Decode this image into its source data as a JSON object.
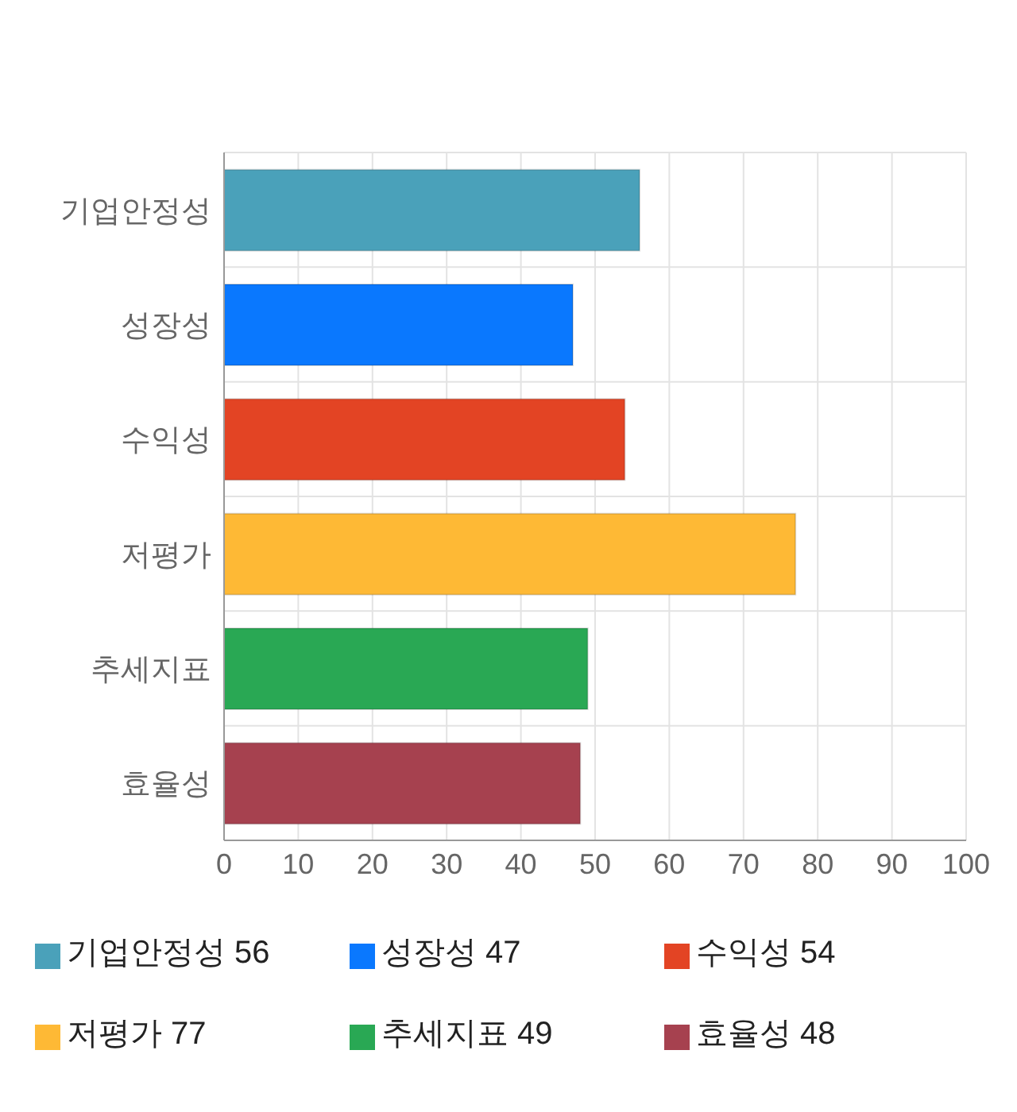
{
  "chart_data": {
    "type": "bar",
    "orientation": "horizontal",
    "stacked": true,
    "categories": [
      "기업안정성",
      "성장성",
      "수익성",
      "저평가",
      "추세지표",
      "효율성"
    ],
    "series": [
      {
        "name": "기업안정성 56",
        "color": "#4aa1ba",
        "values": [
          56,
          null,
          null,
          null,
          null,
          null
        ]
      },
      {
        "name": "성장성 47",
        "color": "#0a78fe",
        "values": [
          null,
          47,
          null,
          null,
          null,
          null
        ]
      },
      {
        "name": "수익성 54",
        "color": "#e34424",
        "values": [
          null,
          null,
          54,
          null,
          null,
          null
        ]
      },
      {
        "name": "저평가 77",
        "color": "#feb935",
        "values": [
          null,
          null,
          null,
          77,
          null,
          null
        ]
      },
      {
        "name": "추세지표 49",
        "color": "#29a854",
        "values": [
          null,
          null,
          null,
          null,
          49,
          null
        ]
      },
      {
        "name": "효율성 48",
        "color": "#a6414f",
        "values": [
          null,
          null,
          null,
          null,
          null,
          48
        ]
      }
    ],
    "xlim": [
      0,
      100
    ],
    "xticks": [
      0,
      10,
      20,
      30,
      40,
      50,
      60,
      70,
      80,
      90,
      100
    ],
    "grid": true,
    "legend": "bottom"
  }
}
